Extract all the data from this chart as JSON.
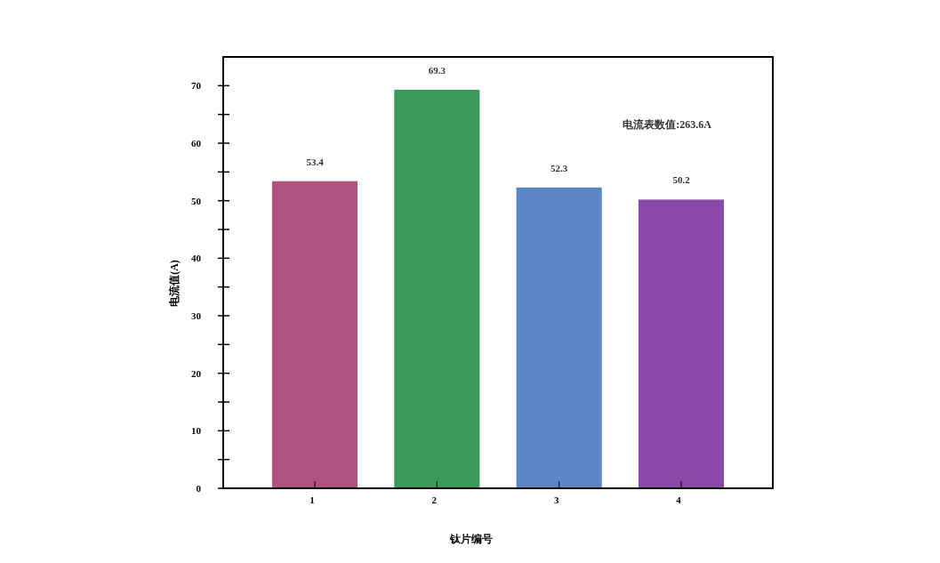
{
  "chart_data": {
    "type": "bar",
    "xlabel": "钛片编号",
    "ylabel": "电流值(A)",
    "categories": [
      "1",
      "2",
      "3",
      "4"
    ],
    "values": [
      53.4,
      69.3,
      52.3,
      50.2
    ],
    "colors": [
      "#b0527f",
      "#3a9a5a",
      "#5a86c8",
      "#8a48a8"
    ],
    "ylim": [
      0,
      75
    ],
    "yticks": [
      0,
      {
        "value": 5,
        "label": null
      },
      10,
      {
        "value": 15,
        "label": null
      },
      20,
      {
        "value": 25,
        "label": null
      },
      30,
      {
        "value": 35,
        "label": null
      },
      40,
      {
        "value": 45,
        "label": null
      },
      50,
      {
        "value": 55,
        "label": null
      },
      60,
      {
        "value": 65,
        "label": null
      },
      70
    ],
    "data_labels": true,
    "annotations": [
      "电流表数值:263.6A"
    ]
  }
}
